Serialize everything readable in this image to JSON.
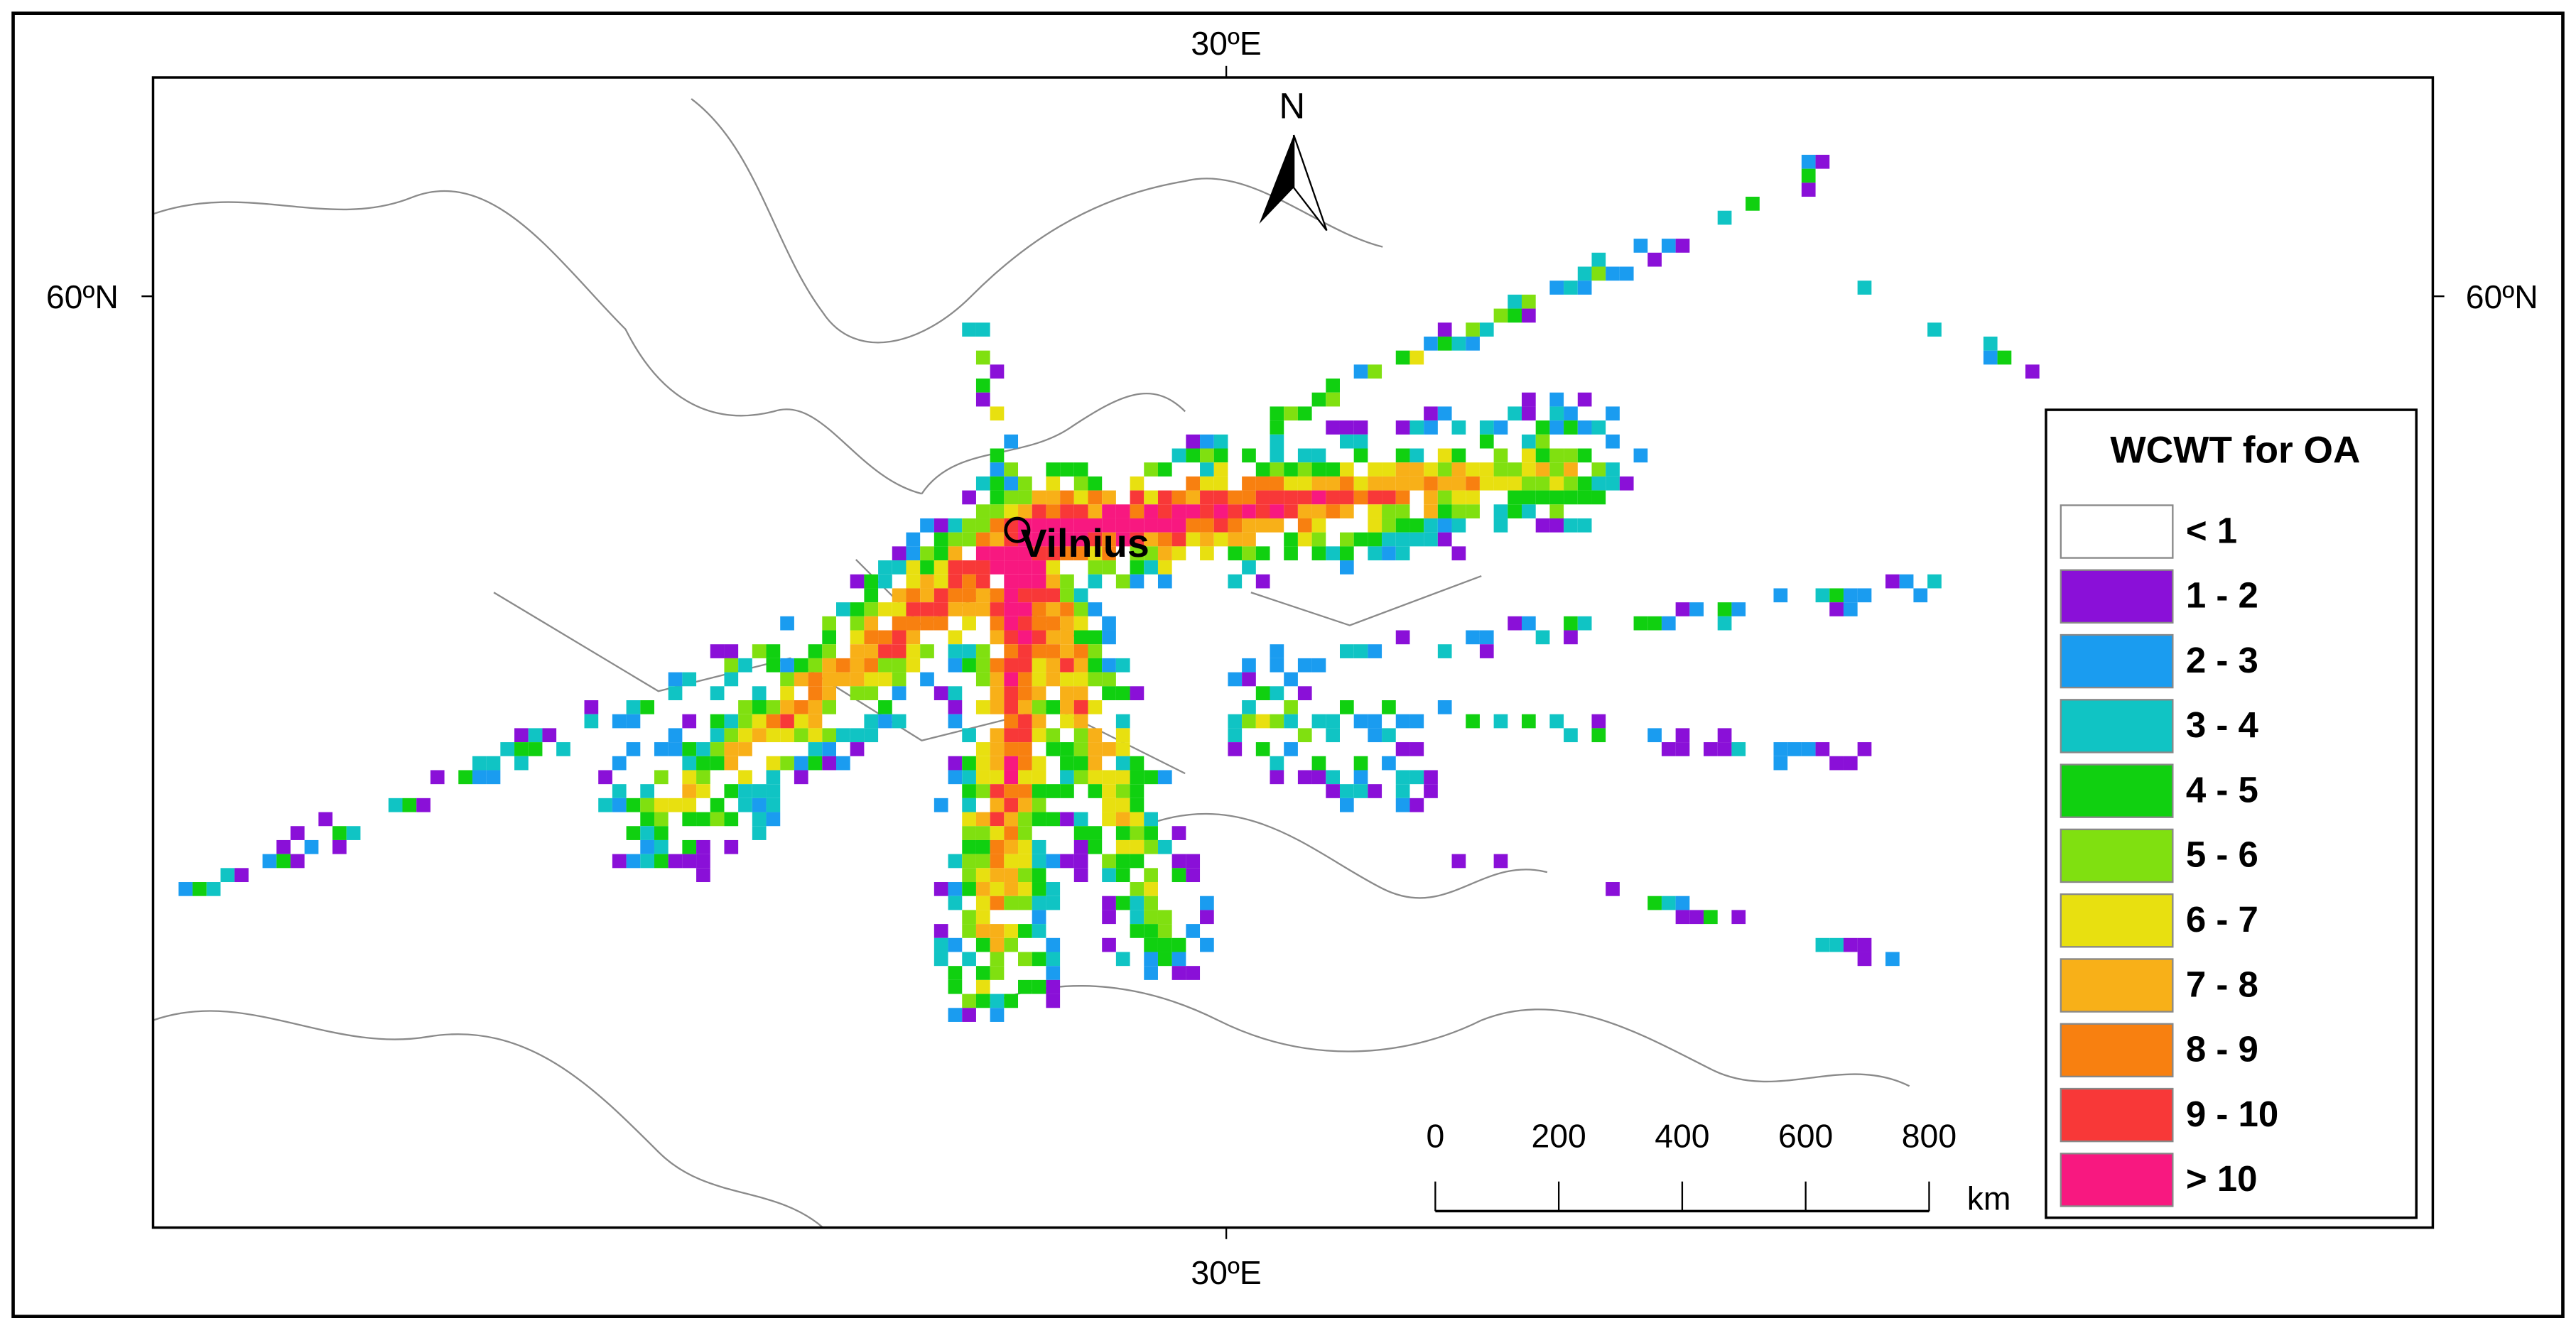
{
  "map": {
    "graticule": {
      "top_label": "30ºE",
      "bottom_label": "30ºE",
      "left_label": "60ºN",
      "right_label": "60ºN"
    },
    "north_arrow": "N",
    "site": "Vilnius",
    "legend": {
      "title": "WCWT for OA",
      "items": [
        {
          "label": "< 1",
          "color": "#ffffff"
        },
        {
          "label": "1 - 2",
          "color": "#8a10d8"
        },
        {
          "label": "2 - 3",
          "color": "#1a9cf0"
        },
        {
          "label": "3 - 4",
          "color": "#10c4c4"
        },
        {
          "label": "4 - 5",
          "color": "#10d010"
        },
        {
          "label": "5 - 6",
          "color": "#80e010"
        },
        {
          "label": "6 - 7",
          "color": "#e8e010"
        },
        {
          "label": "7 - 8",
          "color": "#f8b018"
        },
        {
          "label": "8 - 9",
          "color": "#f88010"
        },
        {
          "label": "9 - 10",
          "color": "#f83838"
        },
        {
          "label": "> 10",
          "color": "#f81880"
        }
      ]
    },
    "scale_bar": {
      "ticks": [
        0,
        200,
        400,
        600,
        800
      ],
      "unit": "km"
    }
  }
}
